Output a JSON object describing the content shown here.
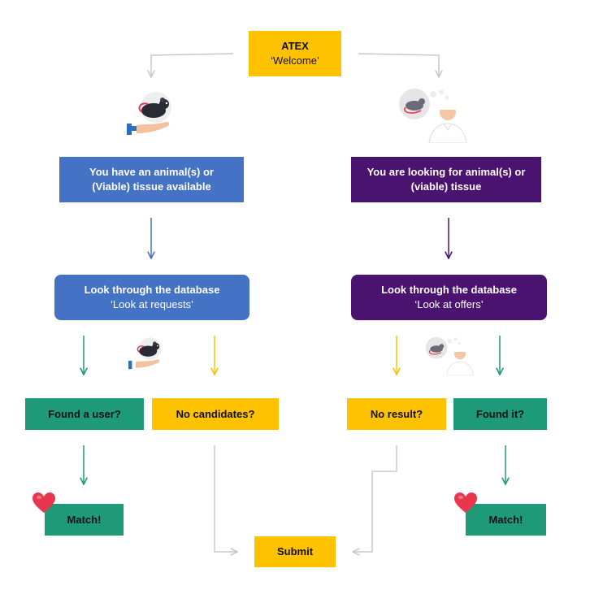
{
  "start": {
    "title": "ATEX",
    "subtitle": "‘Welcome’"
  },
  "left": {
    "intro": "You have an animal(s) or (Viable) tissue available",
    "database": {
      "title": "Look through the database",
      "subtitle": "‘Look at requests’"
    },
    "found": "Found a user?",
    "none": "No candidates?",
    "match": "Match!"
  },
  "right": {
    "intro": "You are looking for animal(s) or (viable) tissue",
    "database": {
      "title": "Look through the database",
      "subtitle": "‘Look at offers’"
    },
    "none": "No result?",
    "found": "Found it?",
    "match": "Match!"
  },
  "submit": "Submit",
  "colors": {
    "yellow": "#ffc200",
    "blue": "#4472c4",
    "purple": "#4b1370",
    "green": "#1e9a78",
    "heart": "#e8364f",
    "connector": "#c8c8c8"
  },
  "icons": [
    "rat-on-hand-icon",
    "person-thinking-of-rat-icon",
    "heart-icon"
  ]
}
